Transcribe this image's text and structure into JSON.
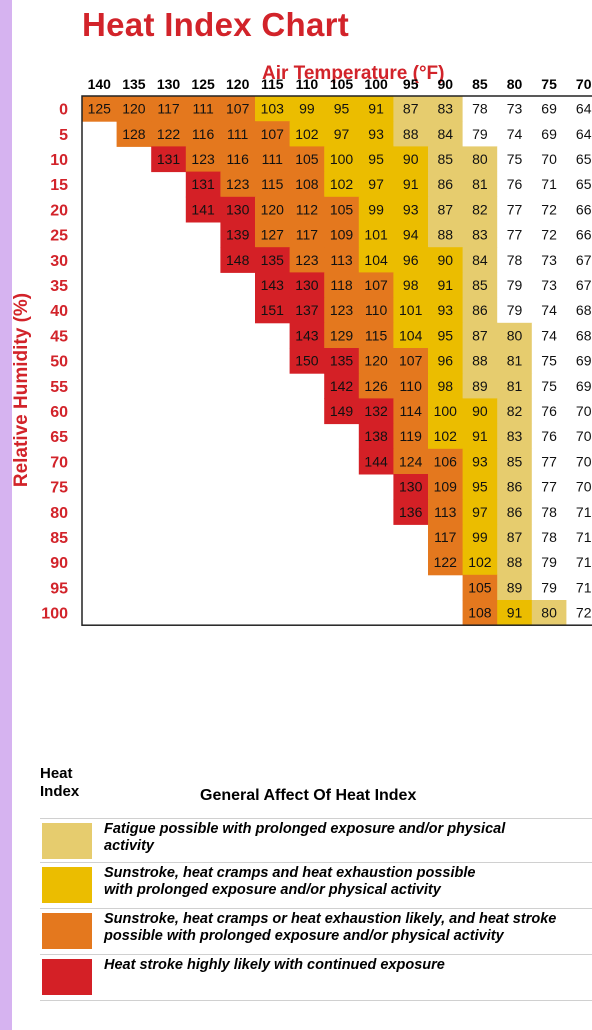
{
  "title": "Heat Index Chart",
  "chart_data": {
    "type": "heatmap",
    "title": "Heat Index Chart",
    "xlabel": "Air Temperature (°F)",
    "ylabel": "Relative Humidity (%)",
    "x": [
      140,
      135,
      130,
      125,
      120,
      115,
      110,
      105,
      100,
      95,
      90,
      85,
      80,
      75,
      70
    ],
    "y": [
      0,
      5,
      10,
      15,
      20,
      25,
      30,
      35,
      40,
      45,
      50,
      55,
      60,
      65,
      70,
      75,
      80,
      85,
      90,
      95,
      100
    ],
    "rows": [
      [
        125,
        120,
        117,
        111,
        107,
        103,
        99,
        95,
        91,
        87,
        83,
        78,
        73,
        69,
        64
      ],
      [
        null,
        128,
        122,
        116,
        111,
        107,
        102,
        97,
        93,
        88,
        84,
        79,
        74,
        69,
        64
      ],
      [
        null,
        null,
        131,
        123,
        116,
        111,
        105,
        100,
        95,
        90,
        85,
        80,
        75,
        70,
        65
      ],
      [
        null,
        null,
        null,
        131,
        123,
        115,
        108,
        102,
        97,
        91,
        86,
        81,
        76,
        71,
        65
      ],
      [
        null,
        null,
        null,
        141,
        130,
        120,
        112,
        105,
        99,
        93,
        87,
        82,
        77,
        72,
        66
      ],
      [
        null,
        null,
        null,
        null,
        139,
        127,
        117,
        109,
        101,
        94,
        88,
        83,
        77,
        72,
        66
      ],
      [
        null,
        null,
        null,
        null,
        148,
        135,
        123,
        113,
        104,
        96,
        90,
        84,
        78,
        73,
        67
      ],
      [
        null,
        null,
        null,
        null,
        null,
        143,
        130,
        118,
        107,
        98,
        91,
        85,
        79,
        73,
        67
      ],
      [
        null,
        null,
        null,
        null,
        null,
        151,
        137,
        123,
        110,
        101,
        93,
        86,
        79,
        74,
        68
      ],
      [
        null,
        null,
        null,
        null,
        null,
        null,
        143,
        129,
        115,
        104,
        95,
        87,
        80,
        74,
        68
      ],
      [
        null,
        null,
        null,
        null,
        null,
        null,
        150,
        135,
        120,
        107,
        96,
        88,
        81,
        75,
        69
      ],
      [
        null,
        null,
        null,
        null,
        null,
        null,
        null,
        142,
        126,
        110,
        98,
        89,
        81,
        75,
        69
      ],
      [
        null,
        null,
        null,
        null,
        null,
        null,
        null,
        149,
        132,
        114,
        100,
        90,
        82,
        76,
        70
      ],
      [
        null,
        null,
        null,
        null,
        null,
        null,
        null,
        null,
        138,
        119,
        102,
        91,
        83,
        76,
        70
      ],
      [
        null,
        null,
        null,
        null,
        null,
        null,
        null,
        null,
        144,
        124,
        106,
        93,
        85,
        77,
        70
      ],
      [
        null,
        null,
        null,
        null,
        null,
        null,
        null,
        null,
        null,
        130,
        109,
        95,
        86,
        77,
        70
      ],
      [
        null,
        null,
        null,
        null,
        null,
        null,
        null,
        null,
        null,
        136,
        113,
        97,
        86,
        78,
        71
      ],
      [
        null,
        null,
        null,
        null,
        null,
        null,
        null,
        null,
        null,
        null,
        117,
        99,
        87,
        78,
        71
      ],
      [
        null,
        null,
        null,
        null,
        null,
        null,
        null,
        null,
        null,
        null,
        122,
        102,
        88,
        79,
        71
      ],
      [
        null,
        null,
        null,
        null,
        null,
        null,
        null,
        null,
        null,
        null,
        null,
        105,
        89,
        79,
        71
      ],
      [
        null,
        null,
        null,
        null,
        null,
        null,
        null,
        null,
        null,
        null,
        null,
        108,
        91,
        80,
        72
      ]
    ],
    "categories": [
      {
        "min": 80,
        "max": 90,
        "color": "#e6cc6e"
      },
      {
        "min": 90,
        "max": 105,
        "color": "#ebbd00"
      },
      {
        "min": 105,
        "max": 130,
        "color": "#e4781e"
      },
      {
        "min": 130,
        "max": 999,
        "color": "#d42026"
      }
    ],
    "none_color": "#ffffff",
    "border_color": "#222222"
  },
  "legend": {
    "heat_index_heading": "Heat Index",
    "effect_heading": "General Affect Of Heat Index",
    "items": [
      {
        "color": "#e6cc6e",
        "line1": "Fatigue possible with prolonged exposure and/or physical",
        "line2": "activity"
      },
      {
        "color": "#ebbd00",
        "line1": "Sunstroke, heat cramps and heat exhaustion possible",
        "line2": "with prolonged exposure and/or physical activity"
      },
      {
        "color": "#e4781e",
        "line1": "Sunstroke, heat cramps or heat exhaustion likely, and heat stroke",
        "line2": "possible with prolonged exposure and/or physical activity"
      },
      {
        "color": "#d42026",
        "line1": "Heat stroke highly likely with continued exposure",
        "line2": ""
      }
    ]
  }
}
